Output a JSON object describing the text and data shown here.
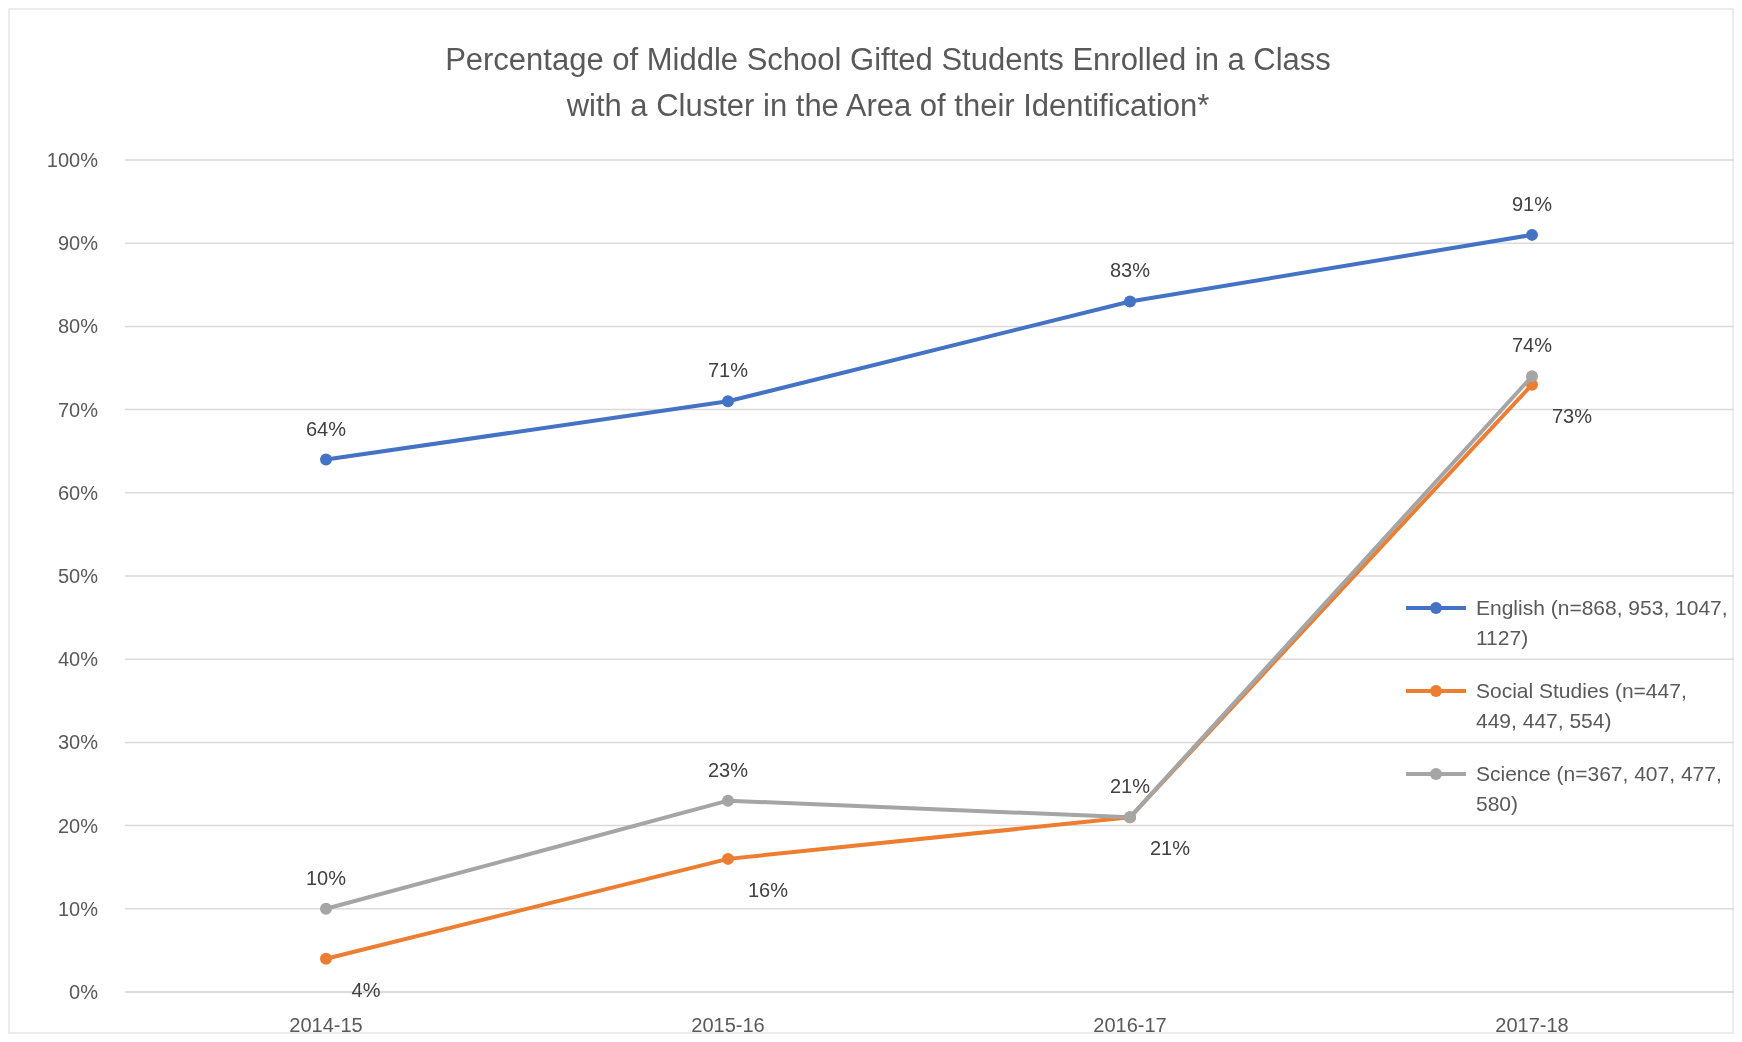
{
  "chart_data": {
    "type": "line",
    "title": "Percentage of Middle School Gifted Students Enrolled in a Class with a Cluster in the Area of their Identification*",
    "categories": [
      "2014-15",
      "2015-16",
      "2016-17",
      "2017-18"
    ],
    "series": [
      {
        "name": "English (n=868, 953, 1047, 1127)",
        "color": "#4472c4",
        "values": [
          64,
          71,
          83,
          91
        ],
        "value_labels": [
          "64%",
          "71%",
          "83%",
          "91%"
        ]
      },
      {
        "name": "Social Studies (n=447, 449, 447, 554)",
        "color": "#ed7d31",
        "values": [
          4,
          16,
          21,
          73
        ],
        "value_labels": [
          "4%",
          "16%",
          "21%",
          "73%"
        ]
      },
      {
        "name": "Science (n=367, 407, 477, 580)",
        "color": "#a5a5a5",
        "values": [
          10,
          23,
          21,
          74
        ],
        "value_labels": [
          "10%",
          "23%",
          "21%",
          "74%"
        ]
      }
    ],
    "ylim": [
      0,
      100
    ],
    "yticks": [
      {
        "value": 0,
        "label": "0%"
      },
      {
        "value": 10,
        "label": "10%"
      },
      {
        "value": 20,
        "label": "20%"
      },
      {
        "value": 30,
        "label": "30%"
      },
      {
        "value": 40,
        "label": "40%"
      },
      {
        "value": 50,
        "label": "50%"
      },
      {
        "value": 60,
        "label": "60%"
      },
      {
        "value": 70,
        "label": "70%"
      },
      {
        "value": 80,
        "label": "80%"
      },
      {
        "value": 90,
        "label": "90%"
      },
      {
        "value": 100,
        "label": "100%"
      }
    ],
    "grid": "y",
    "legend": "right",
    "marker": "circle",
    "line_style": "solid"
  }
}
